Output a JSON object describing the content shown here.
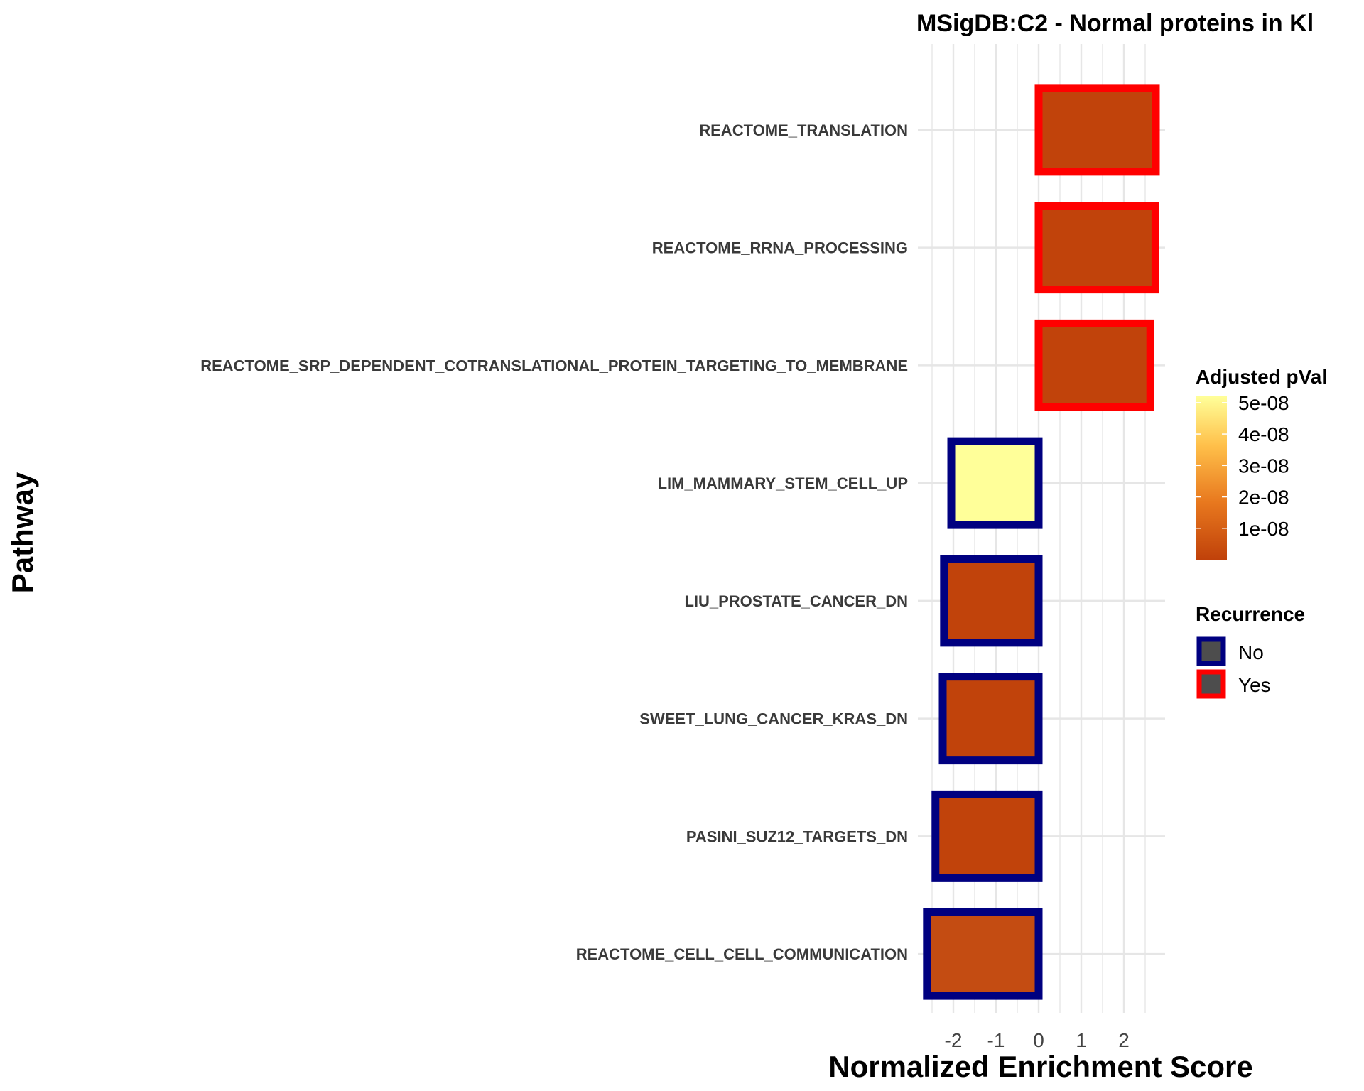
{
  "chart_data": {
    "type": "bar",
    "orientation": "horizontal",
    "title": "MSigDB:C2 - Normal proteins in Kl",
    "xlabel": "Normalized Enrichment Score",
    "ylabel": "Pathway",
    "xlim": [
      -2.5,
      2.9
    ],
    "xticks": [
      "-2",
      "-1",
      "0",
      "1",
      "2"
    ],
    "xtick_values": [
      -2,
      -1,
      0,
      1,
      2
    ],
    "grid": true,
    "categories": [
      "REACTOME_TRANSLATION",
      "REACTOME_RRNA_PROCESSING",
      "REACTOME_SRP_DEPENDENT_COTRANSLATIONAL_PROTEIN_TARGETING_TO_MEMBRANE",
      "LIM_MAMMARY_STEM_CELL_UP",
      "LIU_PROSTATE_CANCER_DN",
      "SWEET_LUNG_CANCER_KRAS_DN",
      "PASINI_SUZ12_TARGETS_DN",
      "REACTOME_CELL_CELL_COMMUNICATION"
    ],
    "values": [
      2.75,
      2.74,
      2.62,
      -2.05,
      -2.22,
      -2.25,
      -2.42,
      -2.62
    ],
    "adjusted_pval": [
      5e-10,
      5e-10,
      5e-10,
      5.2e-08,
      5e-10,
      5e-10,
      5e-10,
      3e-09
    ],
    "recurrence": [
      "Yes",
      "Yes",
      "Yes",
      "No",
      "No",
      "No",
      "No",
      "No"
    ],
    "legend": {
      "position": "right",
      "color_title": "Adjusted pVal",
      "color_ticks": [
        "5e-08",
        "4e-08",
        "3e-08",
        "2e-08",
        "1e-08"
      ],
      "color_tick_values": [
        5e-08,
        4e-08,
        3e-08,
        2e-08,
        1e-08
      ],
      "color_range": [
        0,
        5.2e-08
      ],
      "color_low": "#C0410A",
      "color_high": "#FFFF99",
      "outline_title": "Recurrence",
      "outline_items": [
        {
          "label": "No",
          "color": "#000080"
        },
        {
          "label": "Yes",
          "color": "#FF0000"
        }
      ]
    }
  }
}
